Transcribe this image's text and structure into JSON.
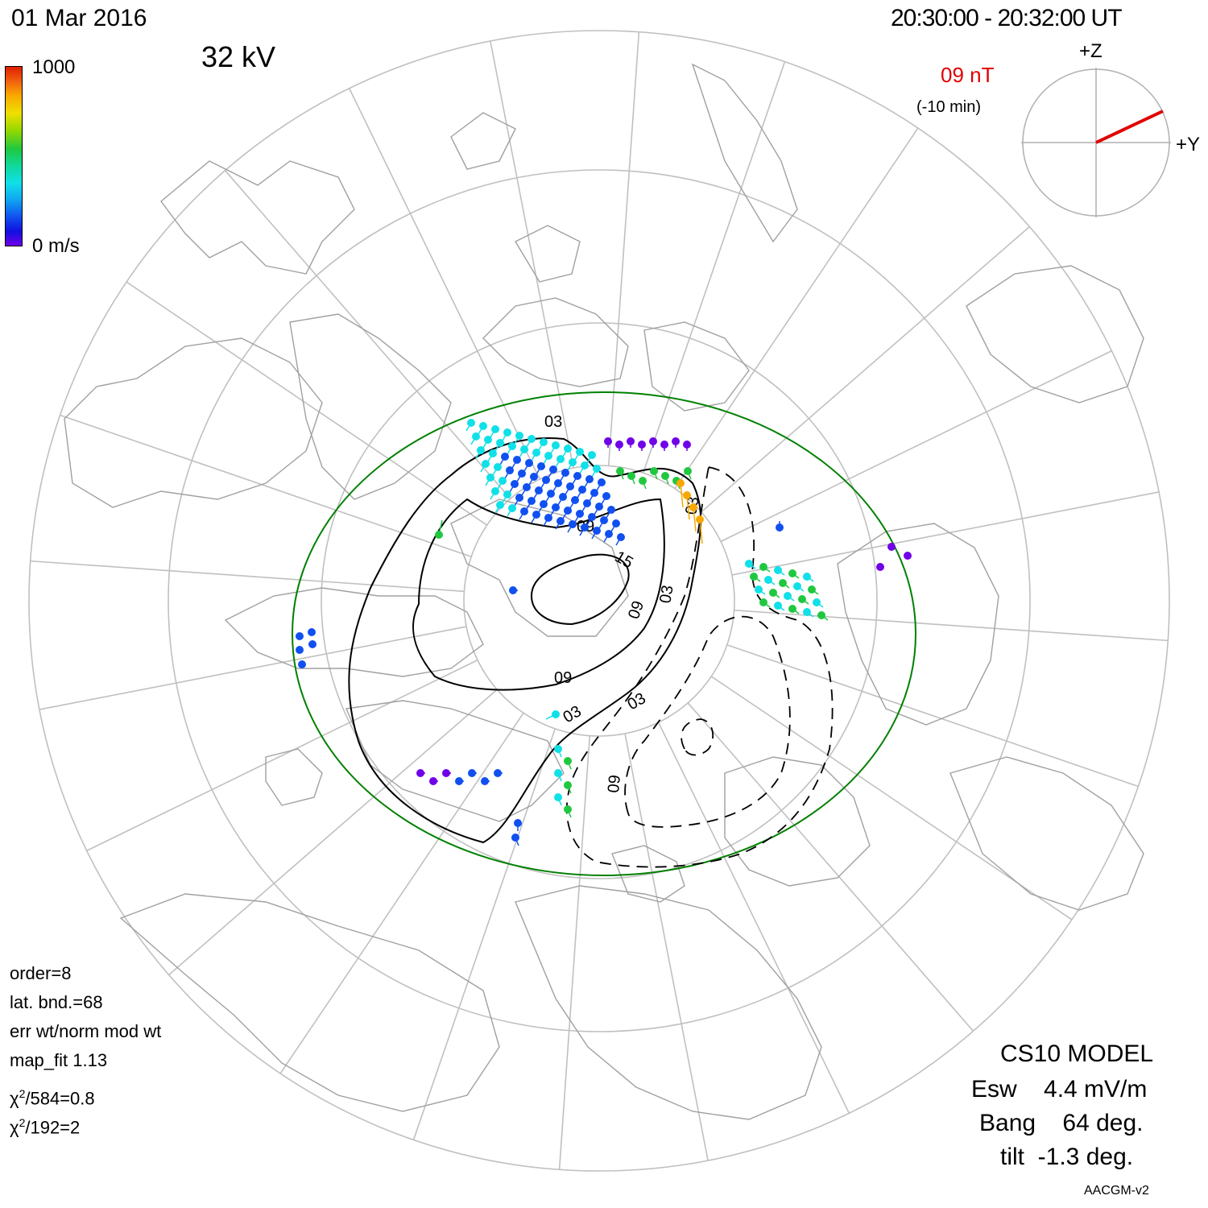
{
  "header": {
    "date": "01  Mar  2016",
    "time_range": "20:30:00  -  20:32:00  UT",
    "potential": "32 kV"
  },
  "colorbar": {
    "max_label": "1000",
    "min_label": "0 m/s",
    "colors": [
      "#e02000",
      "#f8a800",
      "#f0e000",
      "#20c840",
      "#10e0e8",
      "#1050f0",
      "#7000e8"
    ]
  },
  "imf_clock": {
    "magnitude": "09 nT",
    "delay": "(-10 min)",
    "z_label": "+Z",
    "y_label": "+Y",
    "vector_color": "#e00000"
  },
  "fit_info": {
    "order": "order=8",
    "lat_bnd": "lat. bnd.=68",
    "weighting": "err wt/norm mod wt",
    "map_fit": "map_fit 1.13",
    "chi_prefix": "χ",
    "chi1_rest": "/584=0.8",
    "chi2_rest": "/192=2",
    "chi_sup": "2"
  },
  "model_info": {
    "model": "CS10 MODEL",
    "esw": "Esw    4.4 mV/m",
    "bang": "Bang    64 deg.",
    "tilt": "tilt  -1.3 deg.",
    "coords": "AACGM-v2"
  },
  "contours": {
    "labels_pos": [
      "03",
      "09",
      "15"
    ],
    "labels_neg": [
      "03",
      "03",
      "09",
      "09"
    ],
    "hmb_color": "#008000"
  },
  "vectors": {
    "note": "velocity vectors colored by speed"
  }
}
